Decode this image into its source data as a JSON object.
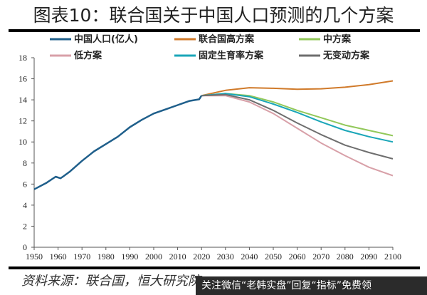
{
  "chart_data": {
    "type": "line",
    "title": "图表10：联合国关于中国人口预测的几个方案",
    "xlabel": "",
    "ylabel": "",
    "xlim": [
      1950,
      2100
    ],
    "ylim": [
      0,
      18
    ],
    "x_ticks": [
      "1950",
      "1960",
      "1970",
      "1980",
      "1990",
      "2000",
      "2010",
      "2020",
      "2030",
      "2040",
      "2050",
      "2060",
      "2070",
      "2080",
      "2090",
      "2100"
    ],
    "y_ticks": [
      "0",
      "2",
      "4",
      "6",
      "8",
      "10",
      "12",
      "14",
      "16",
      "18"
    ],
    "grid": false,
    "legend_placement": "top",
    "series": [
      {
        "name": "中国人口(亿人)",
        "color": "#1f5f8b",
        "x": [
          1950,
          1955,
          1959,
          1961,
          1962,
          1965,
          1970,
          1975,
          1980,
          1985,
          1990,
          1995,
          2000,
          2005,
          2010,
          2015,
          2019,
          2020
        ],
        "y": [
          5.5,
          6.1,
          6.7,
          6.55,
          6.7,
          7.2,
          8.2,
          9.1,
          9.8,
          10.5,
          11.4,
          12.1,
          12.7,
          13.1,
          13.5,
          13.9,
          14.05,
          14.4
        ]
      },
      {
        "name": "联合国高方案",
        "color": "#d07a2a",
        "x": [
          2020,
          2030,
          2040,
          2050,
          2060,
          2070,
          2080,
          2090,
          2100
        ],
        "y": [
          14.4,
          14.9,
          15.15,
          15.1,
          15.0,
          15.05,
          15.2,
          15.45,
          15.8
        ]
      },
      {
        "name": "中方案",
        "color": "#92c85a",
        "x": [
          2020,
          2030,
          2040,
          2050,
          2060,
          2070,
          2080,
          2090,
          2100
        ],
        "y": [
          14.4,
          14.6,
          14.4,
          13.8,
          13.0,
          12.3,
          11.6,
          11.1,
          10.6
        ]
      },
      {
        "name": "低方案",
        "color": "#d8a0a8",
        "x": [
          2020,
          2030,
          2040,
          2050,
          2060,
          2070,
          2080,
          2090,
          2100
        ],
        "y": [
          14.4,
          14.4,
          13.8,
          12.7,
          11.3,
          9.9,
          8.7,
          7.6,
          6.8
        ]
      },
      {
        "name": "固定生育率方案",
        "color": "#1aa6b8",
        "x": [
          2020,
          2030,
          2040,
          2050,
          2060,
          2070,
          2080,
          2090,
          2100
        ],
        "y": [
          14.4,
          14.6,
          14.3,
          13.6,
          12.8,
          11.9,
          11.1,
          10.5,
          10.0
        ]
      },
      {
        "name": "无变动方案",
        "color": "#6e6e6e",
        "x": [
          2020,
          2030,
          2040,
          2050,
          2060,
          2070,
          2080,
          2090,
          2100
        ],
        "y": [
          14.4,
          14.5,
          14.0,
          13.0,
          11.8,
          10.7,
          9.7,
          9.0,
          8.4
        ]
      }
    ]
  },
  "source": "资料来源：联合国，恒大研究院",
  "overlay_text": "关注微信“老韩实盘”回复“指标”免费领"
}
